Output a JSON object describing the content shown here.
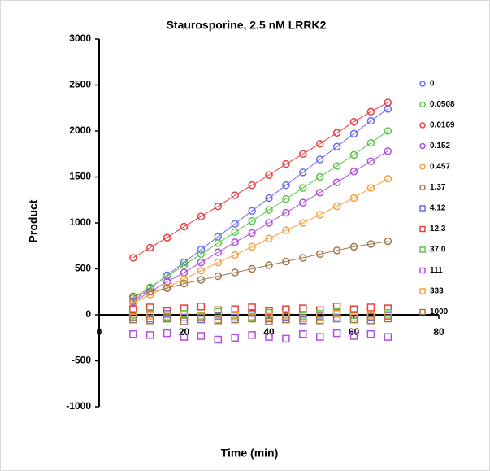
{
  "chart_data": {
    "type": "scatter",
    "title": "Staurosporine, 2.5 nM LRRK2",
    "x_label": "Time (min)",
    "y_label": "Product",
    "x": [
      8,
      12,
      16,
      20,
      24,
      28,
      32,
      36,
      40,
      44,
      48,
      52,
      56,
      60,
      64,
      68
    ],
    "xlim": [
      0,
      80
    ],
    "xticks": [
      0,
      20,
      40,
      60,
      80
    ],
    "ylim": [
      -1000,
      3000
    ],
    "yticks": [
      -1000,
      -500,
      0,
      500,
      1000,
      1500,
      2000,
      2500,
      3000
    ],
    "series": [
      {
        "name": "0",
        "color": "#6b6bf0",
        "marker": "circle",
        "values": [
          150,
          290,
          430,
          570,
          710,
          850,
          990,
          1130,
          1270,
          1410,
          1550,
          1690,
          1830,
          1970,
          2110,
          2240
        ]
      },
      {
        "name": "0.0508",
        "color": "#5fc44a",
        "marker": "circle",
        "values": [
          180,
          300,
          420,
          540,
          660,
          780,
          900,
          1020,
          1140,
          1260,
          1380,
          1500,
          1620,
          1740,
          1870,
          2000
        ]
      },
      {
        "name": "0.0169",
        "color": "#e84040",
        "marker": "circle",
        "values": [
          620,
          730,
          840,
          960,
          1070,
          1180,
          1300,
          1410,
          1520,
          1640,
          1750,
          1860,
          1980,
          2100,
          2210,
          2310
        ]
      },
      {
        "name": "0.152",
        "color": "#b04fe0",
        "marker": "circle",
        "values": [
          140,
          250,
          360,
          460,
          570,
          680,
          790,
          890,
          1000,
          1110,
          1220,
          1330,
          1440,
          1560,
          1670,
          1780
        ]
      },
      {
        "name": "0.457",
        "color": "#f5a040",
        "marker": "circle",
        "values": [
          130,
          220,
          300,
          390,
          480,
          570,
          650,
          740,
          830,
          920,
          1000,
          1090,
          1180,
          1270,
          1380,
          1480
        ]
      },
      {
        "name": "1.37",
        "color": "#a07850",
        "marker": "circle",
        "values": [
          200,
          250,
          290,
          340,
          380,
          420,
          460,
          500,
          540,
          580,
          620,
          660,
          700,
          740,
          770,
          800
        ]
      },
      {
        "name": "4.12",
        "color": "#6b6bf0",
        "marker": "square",
        "values": [
          -20,
          -40,
          10,
          -30,
          -50,
          -10,
          -30,
          20,
          -40,
          -20,
          -60,
          -10,
          -30,
          0,
          -20,
          -10
        ]
      },
      {
        "name": "12.3",
        "color": "#e84040",
        "marker": "square",
        "values": [
          60,
          80,
          40,
          70,
          90,
          50,
          60,
          80,
          40,
          60,
          70,
          50,
          90,
          60,
          80,
          70
        ]
      },
      {
        "name": "37.0",
        "color": "#5fc44a",
        "marker": "square",
        "values": [
          0,
          20,
          -20,
          10,
          -10,
          30,
          0,
          -20,
          20,
          0,
          -10,
          10,
          30,
          0,
          -10,
          20
        ]
      },
      {
        "name": "111",
        "color": "#b04fe0",
        "marker": "square",
        "values": [
          -210,
          -220,
          -200,
          -240,
          -230,
          -270,
          -250,
          -220,
          -240,
          -260,
          -210,
          -240,
          -200,
          -230,
          -210,
          -240
        ]
      },
      {
        "name": "333",
        "color": "#f5a040",
        "marker": "square",
        "values": [
          -30,
          -10,
          -40,
          0,
          -20,
          -50,
          -10,
          -30,
          -20,
          0,
          -40,
          -20,
          10,
          -30,
          -10,
          0
        ]
      },
      {
        "name": "1000",
        "color": "#a07850",
        "marker": "square",
        "values": [
          -50,
          -60,
          -40,
          -70,
          -30,
          -60,
          -50,
          -40,
          -70,
          -50,
          -30,
          -60,
          -40,
          -50,
          -60,
          -40
        ]
      }
    ]
  }
}
